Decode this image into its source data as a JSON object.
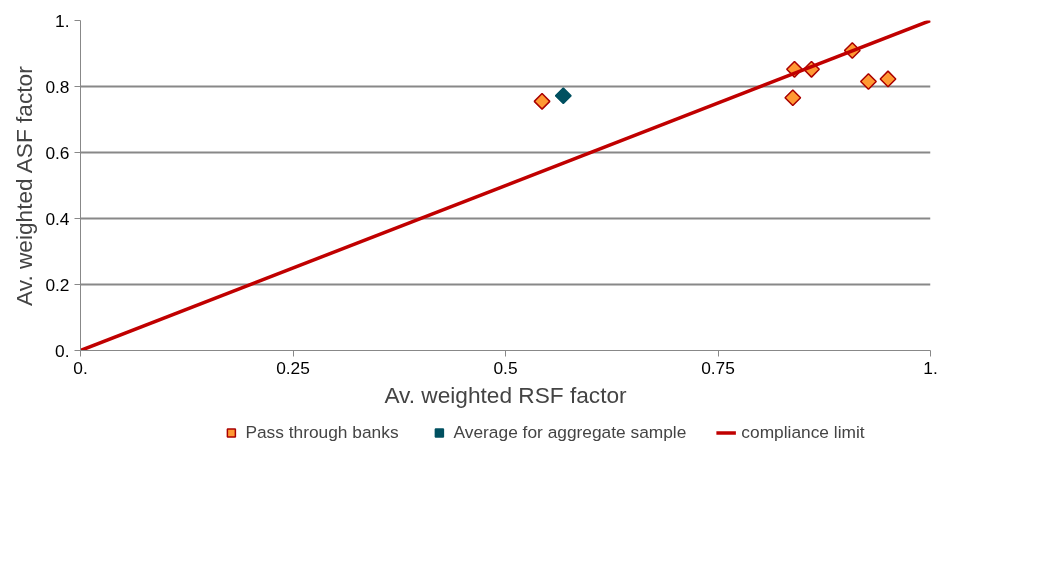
{
  "chart_data": {
    "type": "scatter",
    "xlabel": "Av. weighted RSF factor",
    "ylabel": "Av. weighted ASF factor",
    "xlim": [
      0,
      1
    ],
    "ylim": [
      0,
      1
    ],
    "xticks": [
      {
        "value": 0,
        "label": "0."
      },
      0.25,
      0.5,
      0.75,
      {
        "value": 1,
        "label": "1."
      }
    ],
    "yticks": [
      {
        "value": 0,
        "label": "0."
      },
      0.2,
      0.4,
      0.6,
      0.8,
      {
        "value": 1,
        "label": "1."
      }
    ],
    "grid": "y",
    "legend": "bottom",
    "series": [
      {
        "name": "Pass through banks",
        "color": "#ff9933",
        "marker": "diamond",
        "x": [
          0.543,
          0.84,
          0.86,
          0.838,
          0.908,
          0.927,
          0.95
        ],
        "values": [
          0.755,
          0.852,
          0.852,
          0.766,
          0.909,
          0.815,
          0.823
        ]
      },
      {
        "name": "Average for aggregate sample",
        "color": "#005060",
        "marker": "diamond",
        "x": [
          0.568
        ],
        "values": [
          0.772
        ]
      },
      {
        "name": "compliance limit",
        "type": "line",
        "color": "#c00000",
        "x": [
          0,
          1
        ],
        "values": [
          0,
          1
        ]
      }
    ]
  }
}
